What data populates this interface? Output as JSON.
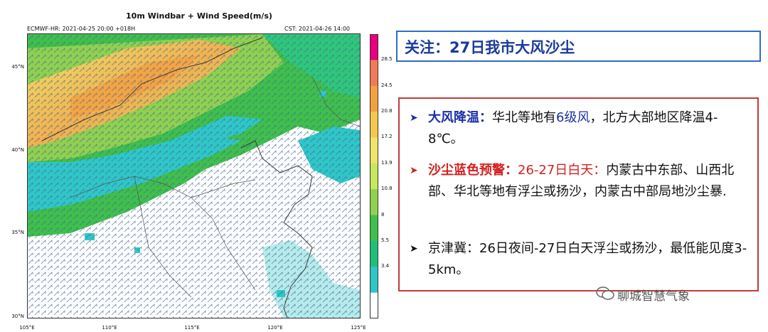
{
  "map": {
    "title": "10m Windbar + Wind Speed(m/s)",
    "model_init": "ECMWF-HR: 2021-04-25 20:00 +018H",
    "valid_time": "CST: 2021-04-26 14:00",
    "lat_labels": [
      "45°N",
      "40°N",
      "35°N",
      "30°N"
    ],
    "lon_labels": [
      "105°E",
      "110°E",
      "115°E",
      "120°E",
      "125°E"
    ],
    "colorbar": {
      "ticks": [
        "28.5",
        "24.5",
        "20.8",
        "17.2",
        "13.9",
        "10.8",
        "8",
        "5.5",
        "3.4"
      ],
      "colors": [
        "#e6007e",
        "#f07a55",
        "#f4a03e",
        "#f4c84c",
        "#efe36a",
        "#c7e75c",
        "#8fd14f",
        "#3ec04a",
        "#1fbf7a",
        "#2ec7c7",
        "#ffffff"
      ]
    }
  },
  "headline": "关注：27日我市大风沙尘",
  "bullets": [
    {
      "marker": "➤",
      "marker_color": "#1a2ea8",
      "label": "大风降温：",
      "pre": "华北等地有",
      "highlight": "6级风",
      "post": "，北方大部地区降温4-8℃。"
    },
    {
      "marker": "➤",
      "marker_color": "#d42020",
      "label": "沙尘蓝色预警：",
      "label_tail": "26-27日白天：",
      "text": "内蒙古中东部、山西北部、华北等地有浮尘或扬沙，内蒙古中部局地沙尘暴."
    },
    {
      "marker": "➤",
      "marker_color": "#111111",
      "text": "京津冀：26日夜间-27日白天浮尘或扬沙，最低能见度3-5km。"
    }
  ],
  "watermark": "聊城智慧气象"
}
